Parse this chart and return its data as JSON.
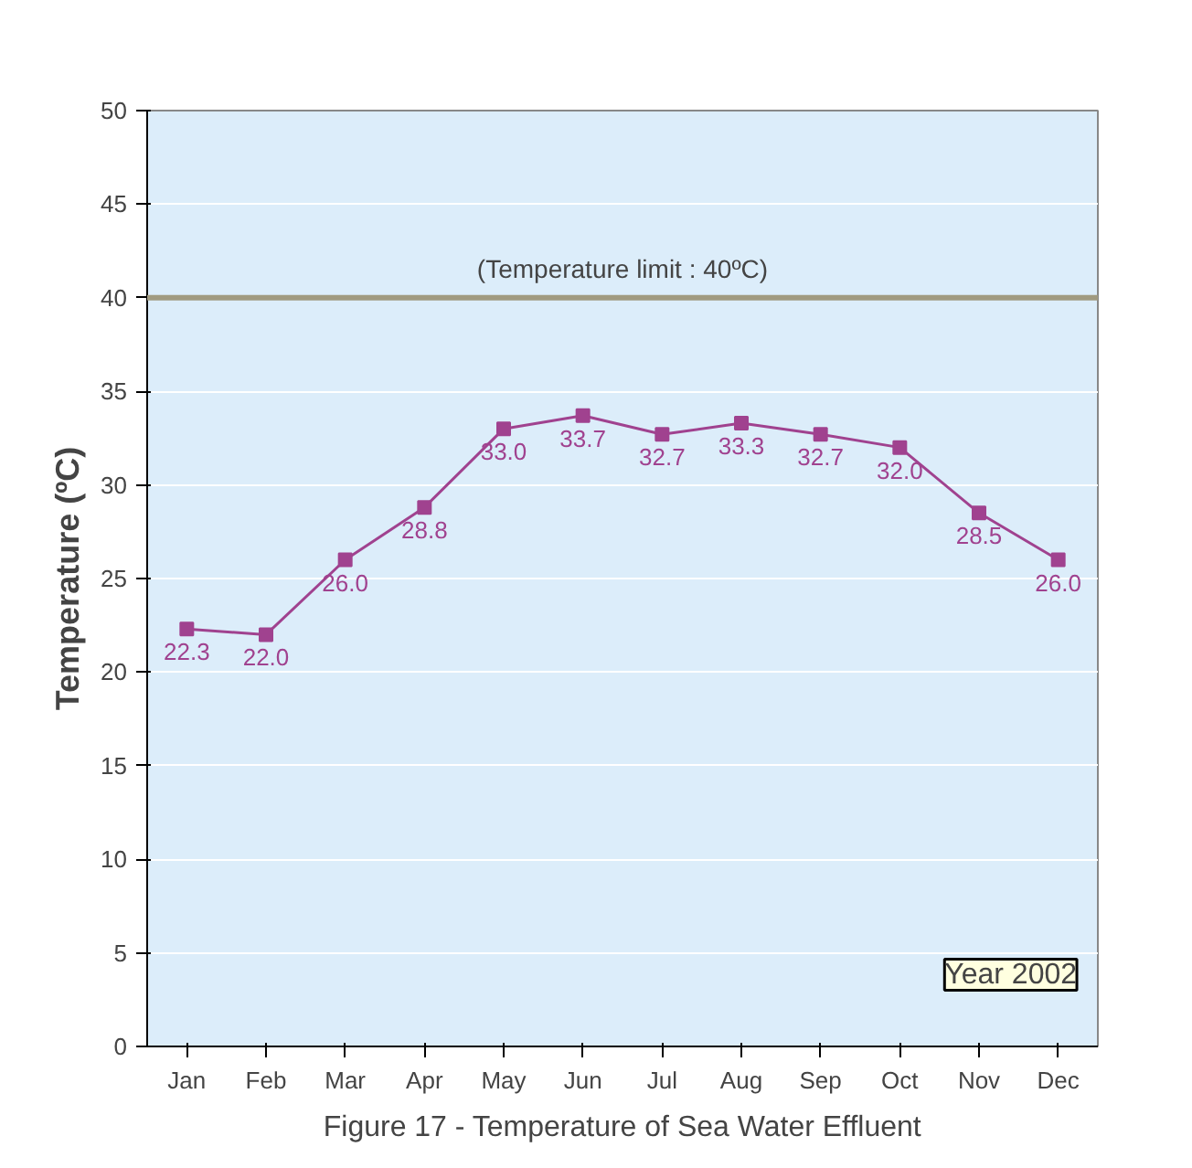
{
  "chart_data": {
    "type": "line",
    "ylabel": "Temperature (ºC)",
    "categories": [
      "Jan",
      "Feb",
      "Mar",
      "Apr",
      "May",
      "Jun",
      "Jul",
      "Aug",
      "Sep",
      "Oct",
      "Nov",
      "Dec"
    ],
    "series": [
      {
        "color": "#a0428f",
        "values": [
          22.3,
          22.0,
          26.0,
          28.8,
          33.0,
          33.7,
          32.7,
          33.3,
          32.7,
          32.0,
          28.5,
          26.0
        ],
        "value_labels": [
          "22.3",
          "22.0",
          "26.0",
          "28.8",
          "33.0",
          "33.7",
          "32.7",
          "33.3",
          "32.7",
          "32.0",
          "28.5",
          "26.0"
        ]
      }
    ],
    "marker": "square",
    "line_style": "solid",
    "grid": "y",
    "ylim": [
      0,
      50
    ],
    "yticks": [
      0,
      5,
      10,
      15,
      20,
      25,
      30,
      35,
      40,
      45,
      50
    ],
    "ref_lines": [
      {
        "axis": "y",
        "value": 40,
        "label": "(Temperature limit : 40ºC)",
        "color": "#a09a80"
      }
    ],
    "annotations": [
      "Year 2002",
      "Figure 17 - Temperature of Sea Water Effluent"
    ]
  }
}
